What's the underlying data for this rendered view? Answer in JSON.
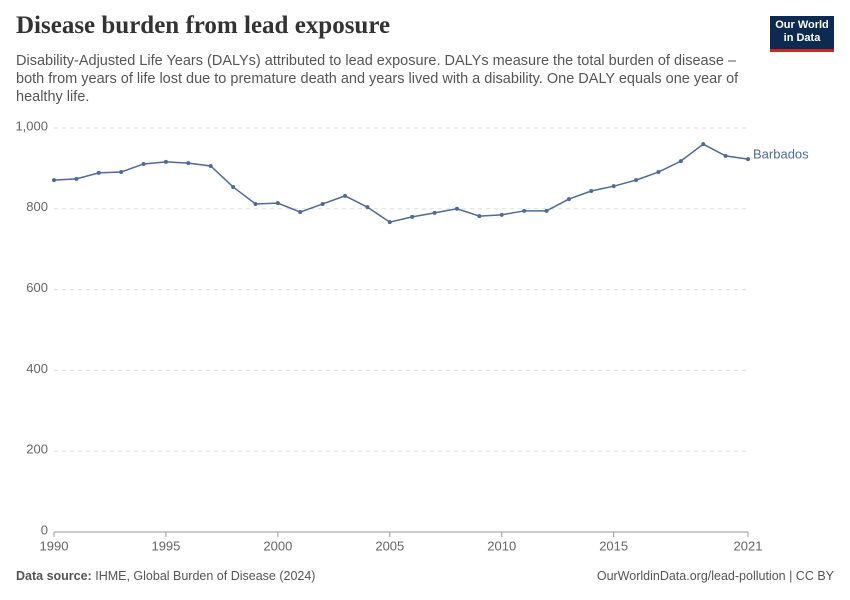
{
  "chart_data": {
    "type": "line",
    "title": "Disease burden from lead exposure",
    "subtitle": "Disability-Adjusted Life Years (DALYs) attributed to lead exposure. DALYs measure the total burden of disease – both from years of life lost due to premature death and years lived with a disability. One DALY equals one year of healthy life.",
    "x": [
      1990,
      1991,
      1992,
      1993,
      1994,
      1995,
      1996,
      1997,
      1998,
      1999,
      2000,
      2001,
      2002,
      2003,
      2004,
      2005,
      2006,
      2007,
      2008,
      2009,
      2010,
      2011,
      2012,
      2013,
      2014,
      2015,
      2016,
      2017,
      2018,
      2019,
      2020,
      2021
    ],
    "series": [
      {
        "name": "Barbados",
        "color": "#4c6a9c",
        "values": [
          871,
          874,
          889,
          891,
          911,
          916,
          913,
          906,
          854,
          812,
          814,
          792,
          812,
          832,
          804,
          767,
          780,
          790,
          800,
          782,
          785,
          795,
          795,
          824,
          844,
          856,
          871,
          891,
          918,
          960,
          931,
          923
        ]
      }
    ],
    "xlim": [
      1990,
      2021
    ],
    "xticks": [
      1990,
      1995,
      2000,
      2005,
      2010,
      2015,
      2021
    ],
    "ylim": [
      0,
      1000
    ],
    "yticks": [
      0,
      200,
      400,
      600,
      800,
      {
        "value": 1000,
        "label": "1,000"
      }
    ],
    "grid": true
  },
  "logo": [
    "Our World",
    "in Data"
  ],
  "footer": {
    "source_label": "Data source:",
    "source": "IHME, Global Burden of Disease (2024)",
    "link": "OurWorldinData.org/lead-pollution | CC BY"
  }
}
